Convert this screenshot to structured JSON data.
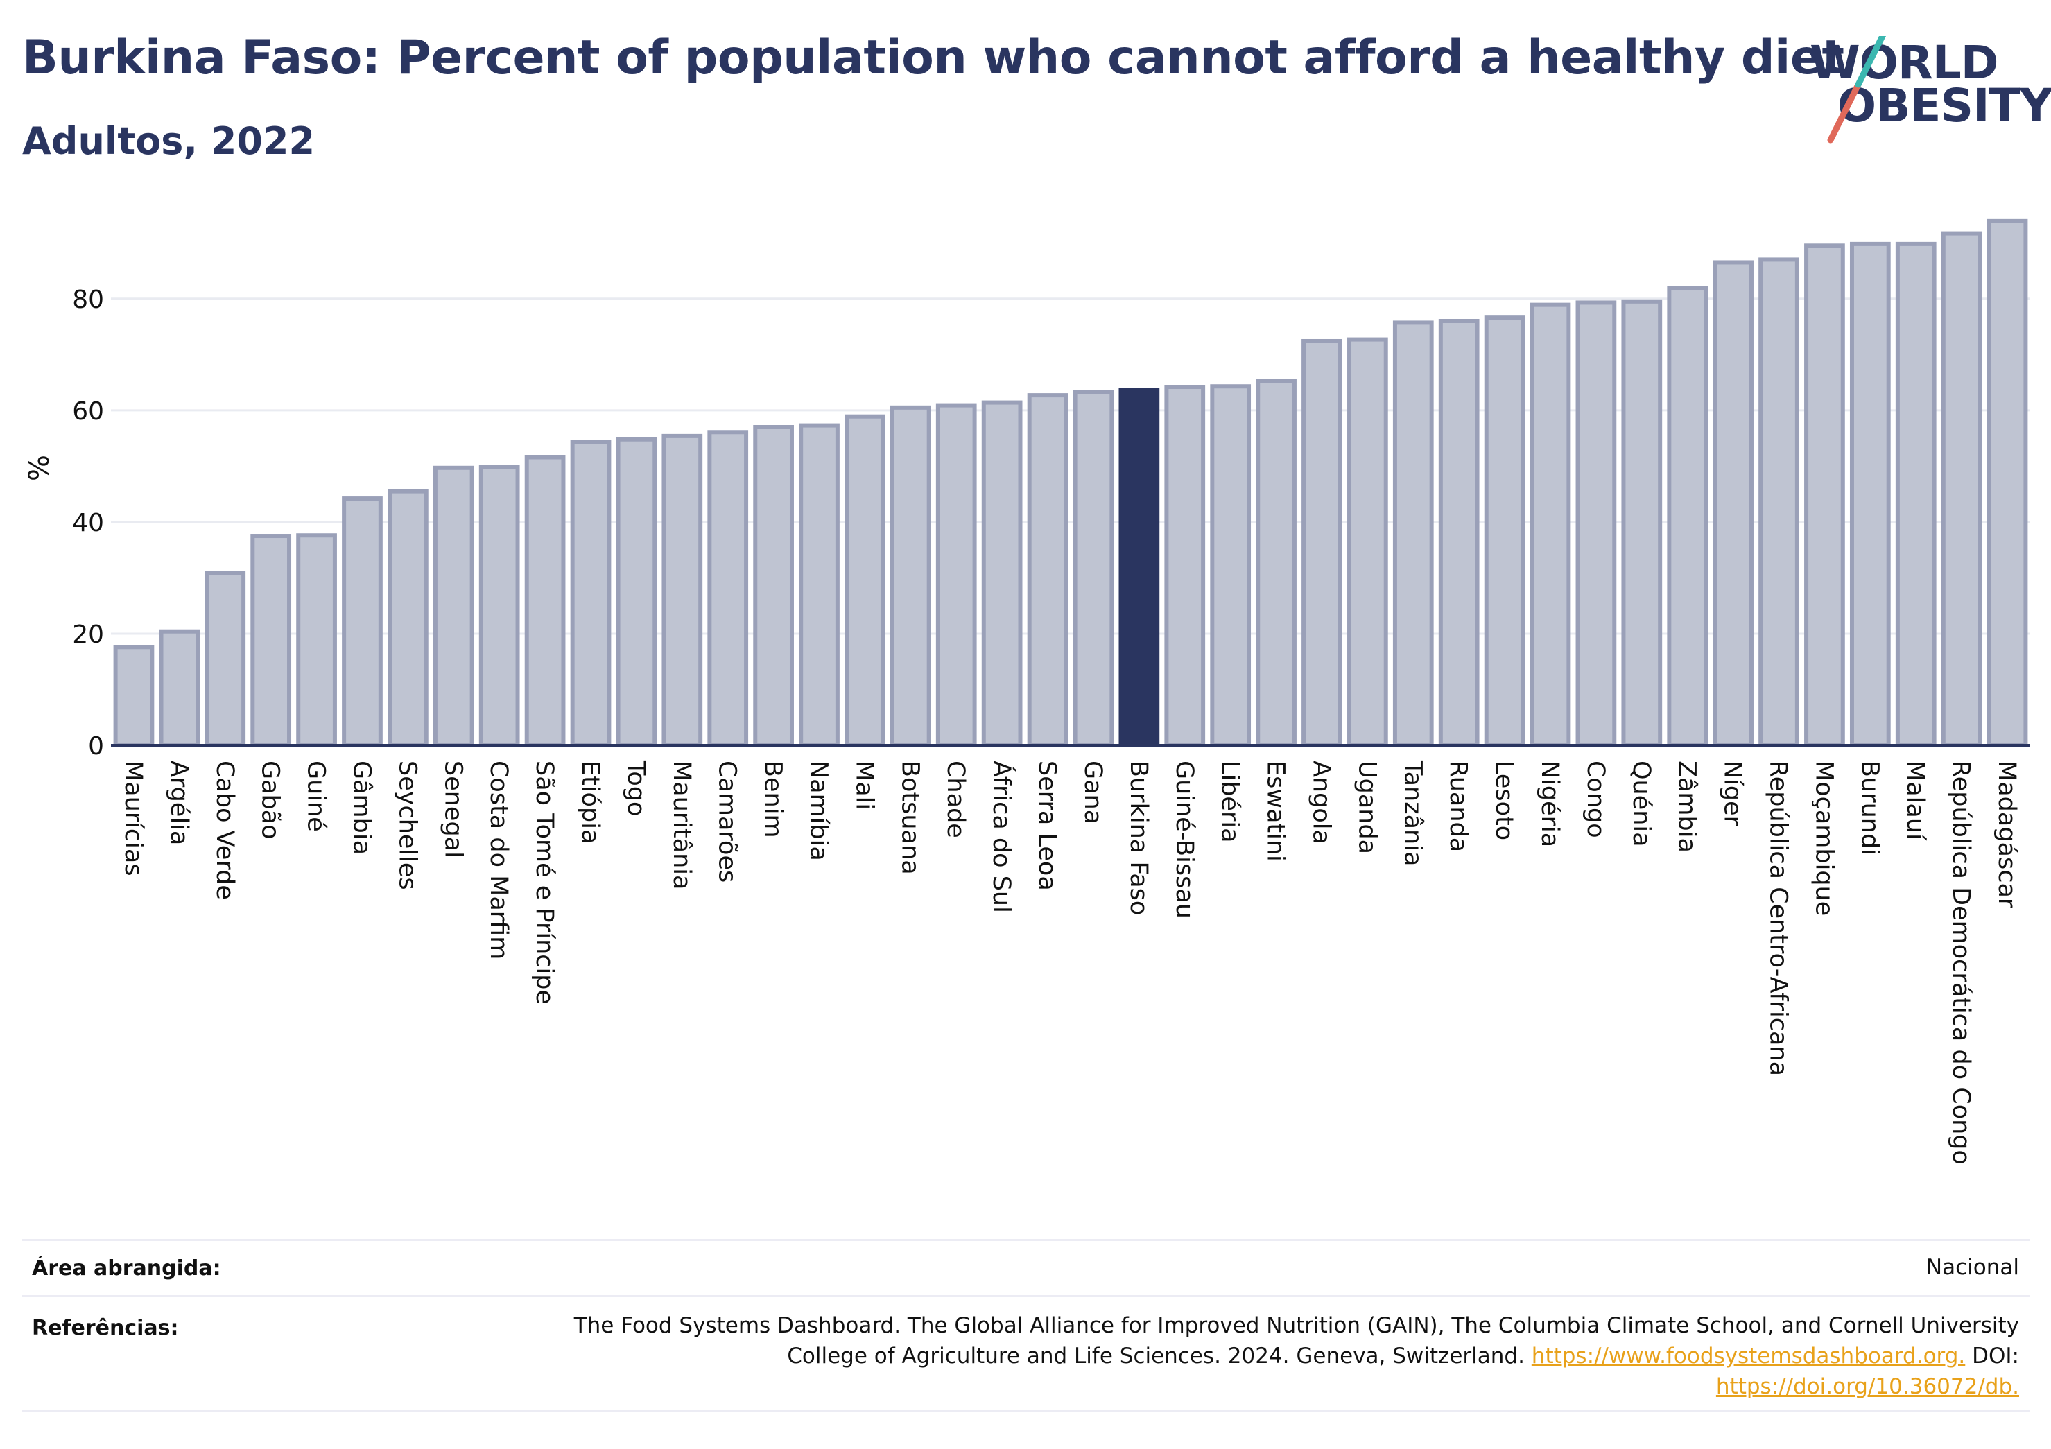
{
  "header": {
    "title": "Burkina Faso: Percent of population who cannot afford a healthy diet",
    "subtitle": "Adultos, 2022"
  },
  "logo": {
    "line1": "WORLD",
    "line2": "OBESITY",
    "brand_color": "#2a3560",
    "slash_colors": [
      "#e0695a",
      "#3bb7b0"
    ]
  },
  "chart_data": {
    "type": "bar",
    "ylabel": "%",
    "ylim": [
      0,
      100
    ],
    "yticks": [
      0,
      20,
      40,
      60,
      80
    ],
    "grid": true,
    "highlight": "Burkina Faso",
    "colors": {
      "bar": "#bfc4d2",
      "bar_edge": "#9aa0b8",
      "highlight": "#2a3560",
      "grid": "#e9ebf1",
      "axis": "#2a3560"
    },
    "categories": [
      "Maurícias",
      "Argélia",
      "Cabo Verde",
      "Gabão",
      "Guiné",
      "Gâmbia",
      "Seychelles",
      "Senegal",
      "Costa do Marfim",
      "São Tomé e Príncipe",
      "Etiópia",
      "Togo",
      "Mauritânia",
      "Camarões",
      "Benim",
      "Namíbia",
      "Mali",
      "Botsuana",
      "Chade",
      "África do Sul",
      "Serra Leoa",
      "Gana",
      "Burkina Faso",
      "Guiné-Bissau",
      "Libéria",
      "Eswatini",
      "Angola",
      "Uganda",
      "Tanzânia",
      "Ruanda",
      "Lesoto",
      "Nigéria",
      "Congo",
      "Quénia",
      "Zâmbia",
      "Níger",
      "República Centro-Africana",
      "Moçambique",
      "Burundi",
      "Malauí",
      "República Democrática do Congo",
      "Madagáscar"
    ],
    "values": [
      17.6,
      20.4,
      30.8,
      37.5,
      37.6,
      44.2,
      45.5,
      49.7,
      49.9,
      51.6,
      54.3,
      54.8,
      55.4,
      56.1,
      57.0,
      57.3,
      58.9,
      60.5,
      60.9,
      61.4,
      62.7,
      63.3,
      63.7,
      64.2,
      64.3,
      65.2,
      72.4,
      72.7,
      75.7,
      76.0,
      76.6,
      78.9,
      79.3,
      79.5,
      81.9,
      86.5,
      87.0,
      89.5,
      89.8,
      89.8,
      91.7,
      93.9
    ]
  },
  "footer": {
    "area_label": "Área abrangida:",
    "area_value": "Nacional",
    "refs_label": "Referências:",
    "refs_line1": "The Food Systems Dashboard. The Global Alliance for Improved Nutrition (GAIN), The Columbia Climate School, and Cornell University",
    "refs_line2_text": "College of Agriculture and Life Sciences. 2024. Geneva, Switzerland.",
    "refs_line2_link": "https://www.foodsystemsdashboard.org.",
    "refs_line2_tail": "DOI:",
    "refs_line3_link": "https://doi.org/10.36072/db."
  }
}
